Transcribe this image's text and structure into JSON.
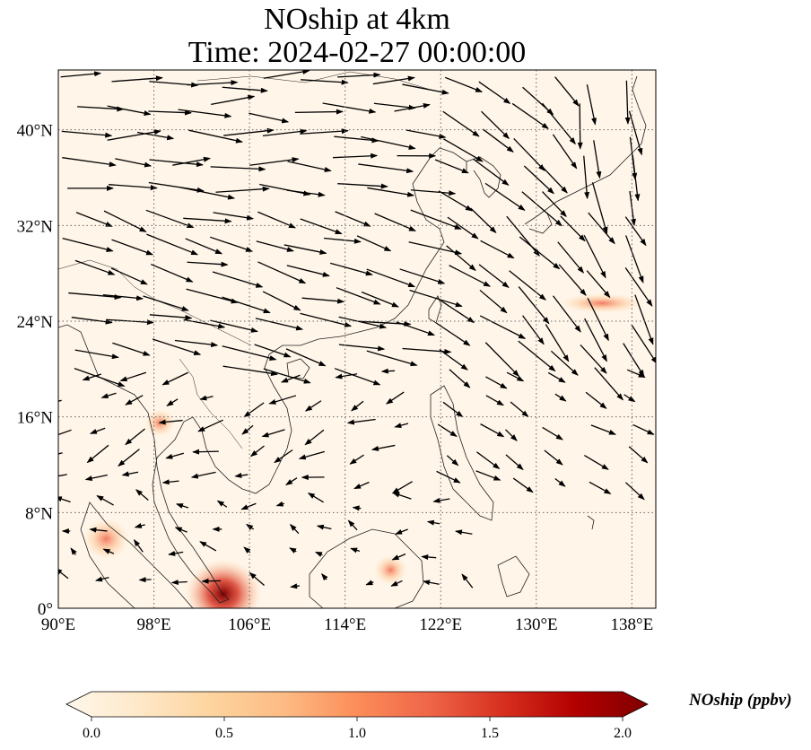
{
  "title": {
    "line1": "NOship at 4km",
    "line2": "Time: 2024-02-27 00:00:00"
  },
  "map": {
    "lon_range": [
      90,
      140
    ],
    "lat_range": [
      0,
      45
    ],
    "lon_ticks": [
      90,
      98,
      106,
      114,
      122,
      130,
      138
    ],
    "lon_tick_labels": [
      "90°E",
      "98°E",
      "106°E",
      "114°E",
      "122°E",
      "130°E",
      "138°E"
    ],
    "lat_ticks": [
      0,
      8,
      16,
      24,
      32,
      40
    ],
    "lat_tick_labels": [
      "0°",
      "8°N",
      "16°N",
      "24°N",
      "32°N",
      "40°N"
    ],
    "gridlines": "dotted",
    "field_colormap": "OrRd",
    "background_value_color": "#fff5e8",
    "hotspots": [
      {
        "lon": 103.8,
        "lat": 1.2,
        "value": 2.0
      },
      {
        "lon": 94.0,
        "lat": 5.8,
        "value": 0.9
      },
      {
        "lon": 135.5,
        "lat": 25.5,
        "value": 0.55
      },
      {
        "lon": 117.8,
        "lat": 3.2,
        "value": 0.45
      },
      {
        "lon": 98.5,
        "lat": 15.5,
        "value": 0.35
      }
    ]
  },
  "colorbar": {
    "min": 0.0,
    "max": 2.0,
    "ticks": [
      "0.0",
      "0.5",
      "1.0",
      "1.5",
      "2.0"
    ],
    "label": "NOship (ppbv)",
    "colors": [
      "#fff7ec",
      "#fee8c8",
      "#fdd49e",
      "#fdbb84",
      "#fc8d59",
      "#ef6548",
      "#d7301f",
      "#b30000",
      "#7f0000"
    ]
  }
}
